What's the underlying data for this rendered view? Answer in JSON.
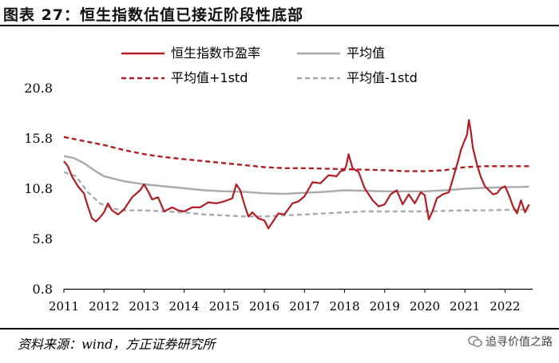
{
  "title": "图表 27：恒生指数估值已接近阶段性底部",
  "source": "资料来源：wind，方正证券研究所",
  "watermark": "追寻价值之路",
  "chart_data": {
    "type": "line",
    "ylim": [
      0.8,
      20.8
    ],
    "yticks": [
      "0.8",
      "5.8",
      "10.8",
      "15.8",
      "20.8"
    ],
    "xlim": [
      2011,
      2022.65
    ],
    "xticks": [
      "2011",
      "2012",
      "2013",
      "2014",
      "2015",
      "2016",
      "2017",
      "2018",
      "2019",
      "2020",
      "2021",
      "2022"
    ],
    "legend_placement": "top",
    "grid": false,
    "series": [
      {
        "name": "恒生指数市盈率",
        "color": "#b01e23",
        "style": "solid",
        "x": [
          2011,
          2011.1,
          2011.2,
          2011.35,
          2011.5,
          2011.6,
          2011.7,
          2011.8,
          2011.9,
          2012.0,
          2012.1,
          2012.2,
          2012.35,
          2012.5,
          2012.7,
          2012.9,
          2013.0,
          2013.1,
          2013.2,
          2013.35,
          2013.5,
          2013.7,
          2013.85,
          2014.0,
          2014.2,
          2014.4,
          2014.6,
          2014.8,
          2015.0,
          2015.2,
          2015.3,
          2015.4,
          2015.5,
          2015.6,
          2015.7,
          2015.85,
          2016.0,
          2016.1,
          2016.2,
          2016.35,
          2016.5,
          2016.7,
          2016.85,
          2017.0,
          2017.2,
          2017.4,
          2017.6,
          2017.8,
          2017.9,
          2018.0,
          2018.05,
          2018.1,
          2018.2,
          2018.35,
          2018.5,
          2018.7,
          2018.85,
          2019.0,
          2019.15,
          2019.3,
          2019.45,
          2019.6,
          2019.75,
          2019.9,
          2020.0,
          2020.1,
          2020.2,
          2020.3,
          2020.45,
          2020.6,
          2020.75,
          2020.85,
          2020.9,
          2021.0,
          2021.05,
          2021.1,
          2021.15,
          2021.2,
          2021.3,
          2021.4,
          2021.5,
          2021.6,
          2021.7,
          2021.8,
          2021.9,
          2022.0,
          2022.1,
          2022.2,
          2022.3,
          2022.4,
          2022.5,
          2022.6
        ],
        "y": [
          13.5,
          13.0,
          12.0,
          11.0,
          10.3,
          9.0,
          7.8,
          7.5,
          7.9,
          8.4,
          9.3,
          8.6,
          8.2,
          8.7,
          9.9,
          10.6,
          11.2,
          10.5,
          9.7,
          9.9,
          8.5,
          8.9,
          8.6,
          8.5,
          8.9,
          8.9,
          9.4,
          9.3,
          9.5,
          9.8,
          11.2,
          10.6,
          9.2,
          8.0,
          8.4,
          7.8,
          7.6,
          6.8,
          7.4,
          8.3,
          8.2,
          9.3,
          9.5,
          10.0,
          11.4,
          11.3,
          12.1,
          12.0,
          12.5,
          12.6,
          13.2,
          14.2,
          12.8,
          12.4,
          10.8,
          9.6,
          9.0,
          9.2,
          10.2,
          10.6,
          9.2,
          10.2,
          9.3,
          10.4,
          10.1,
          7.7,
          8.6,
          9.8,
          10.2,
          10.4,
          12.4,
          13.8,
          14.6,
          15.6,
          16.1,
          17.6,
          16.4,
          14.8,
          13.2,
          11.9,
          11.0,
          10.6,
          10.2,
          10.3,
          10.8,
          11.0,
          10.1,
          9.0,
          8.3,
          9.6,
          8.4,
          9.2
        ]
      },
      {
        "name": "平均值",
        "color": "#aaaaaa",
        "style": "solid",
        "x": [
          2011,
          2011.25,
          2011.5,
          2011.75,
          2012.0,
          2012.5,
          2013.0,
          2013.5,
          2014.0,
          2014.5,
          2015.0,
          2015.5,
          2016.0,
          2016.5,
          2017.0,
          2017.5,
          2018.0,
          2018.5,
          2019.0,
          2019.5,
          2020.0,
          2020.5,
          2021.0,
          2021.5,
          2022.0,
          2022.6
        ],
        "y": [
          14.0,
          13.8,
          13.3,
          12.6,
          12.0,
          11.5,
          11.2,
          11.0,
          10.8,
          10.6,
          10.5,
          10.45,
          10.3,
          10.25,
          10.35,
          10.45,
          10.6,
          10.55,
          10.5,
          10.5,
          10.5,
          10.6,
          10.75,
          10.85,
          10.9,
          10.95
        ]
      },
      {
        "name": "平均值+1std",
        "color": "#b01e23",
        "style": "dashed",
        "x": [
          2011,
          2011.5,
          2012.0,
          2012.5,
          2013.0,
          2013.5,
          2014.0,
          2014.5,
          2015.0,
          2015.5,
          2016.0,
          2016.5,
          2017.0,
          2017.5,
          2018.0,
          2018.5,
          2019.0,
          2019.5,
          2020.0,
          2020.5,
          2021.0,
          2021.5,
          2022.0,
          2022.6
        ],
        "y": [
          15.9,
          15.5,
          15.1,
          14.6,
          14.2,
          13.9,
          13.7,
          13.5,
          13.3,
          13.1,
          12.9,
          12.8,
          12.8,
          12.75,
          12.7,
          12.65,
          12.6,
          12.5,
          12.5,
          12.6,
          12.9,
          13.0,
          13.0,
          13.0
        ]
      },
      {
        "name": "平均值-1std",
        "color": "#aaaaaa",
        "style": "dashed",
        "x": [
          2011,
          2011.3,
          2011.6,
          2011.9,
          2012.2,
          2012.5,
          2013.0,
          2013.5,
          2014.0,
          2014.5,
          2015.0,
          2015.5,
          2016.0,
          2016.5,
          2017.0,
          2017.5,
          2018.0,
          2018.5,
          2019.0,
          2019.5,
          2020.0,
          2020.5,
          2021.0,
          2021.5,
          2022.0,
          2022.6
        ],
        "y": [
          12.4,
          12.0,
          10.4,
          9.3,
          8.8,
          8.6,
          8.6,
          8.5,
          8.4,
          8.2,
          8.1,
          8.0,
          8.0,
          8.1,
          8.2,
          8.3,
          8.4,
          8.5,
          8.5,
          8.5,
          8.5,
          8.55,
          8.6,
          8.6,
          8.65,
          8.7
        ]
      }
    ]
  }
}
